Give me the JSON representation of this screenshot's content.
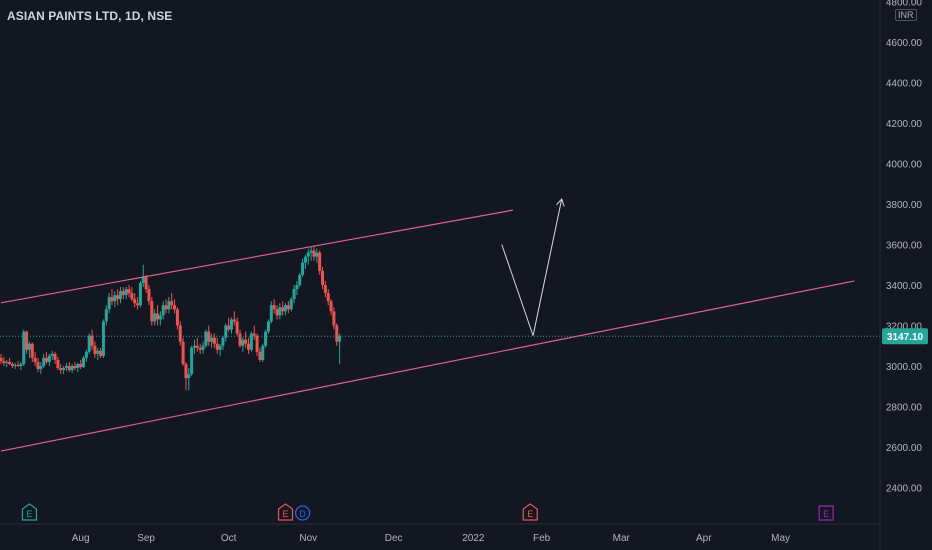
{
  "header": {
    "symbol_title": "ASIAN PAINTS LTD, 1D, NSE",
    "currency": "INR"
  },
  "colors": {
    "background": "#131722",
    "up": "#26a69a",
    "down": "#ef5350",
    "channel": "#e0608f",
    "arrow": "#d9d9e0",
    "axis_text": "#b2b5be",
    "price_badge": "#26a69a",
    "earnings_past_up": "#26a69a",
    "earnings_past_down": "#ef5350",
    "earnings_future": "#9c27b0",
    "dividend": "#2962ff"
  },
  "chart_data": {
    "type": "candlestick",
    "title": "ASIAN PAINTS LTD, 1D, NSE",
    "y_unit": "INR",
    "y_ticks": [
      2400,
      2600,
      2800,
      3000,
      3200,
      3400,
      3600,
      3800,
      4000,
      4200,
      4400,
      4600,
      4800
    ],
    "y_tick_labels": [
      "2400.00",
      "2600.00",
      "2800.00",
      "3000.00",
      "3200.00",
      "3400.00",
      "3600.00",
      "3800.00",
      "4000.00",
      "4200.00",
      "4400.00",
      "4600.00",
      "4800.00"
    ],
    "ylim": [
      2200,
      4800
    ],
    "x_labels": [
      "Aug",
      "Sep",
      "Oct",
      "Nov",
      "Dec",
      "2022",
      "Feb",
      "Mar",
      "Apr",
      "May"
    ],
    "x_label_positions": [
      28,
      51,
      80,
      108,
      138,
      166,
      190,
      218,
      247,
      274
    ],
    "xlim": [
      0,
      300
    ],
    "last_price": 3147.1,
    "last_price_label": "3147.10",
    "candles": [
      [
        3040,
        3060,
        3010,
        3025
      ],
      [
        3025,
        3045,
        3000,
        3015
      ],
      [
        3015,
        3030,
        2995,
        3020
      ],
      [
        3020,
        3040,
        3005,
        3010
      ],
      [
        3010,
        3020,
        2990,
        3000
      ],
      [
        3000,
        3015,
        2985,
        3005
      ],
      [
        3005,
        3025,
        2995,
        3000
      ],
      [
        3000,
        3020,
        2980,
        3010
      ],
      [
        3010,
        3180,
        3000,
        3170
      ],
      [
        3170,
        3175,
        3060,
        3080
      ],
      [
        3080,
        3120,
        3040,
        3110
      ],
      [
        3110,
        3115,
        3020,
        3040
      ],
      [
        3040,
        3070,
        3000,
        3020
      ],
      [
        3020,
        3040,
        2970,
        2985
      ],
      [
        2985,
        3020,
        2960,
        3000
      ],
      [
        3000,
        3060,
        2990,
        3040
      ],
      [
        3040,
        3070,
        3010,
        3020
      ],
      [
        3020,
        3060,
        3000,
        3050
      ],
      [
        3050,
        3075,
        3030,
        3060
      ],
      [
        3060,
        3070,
        3010,
        3030
      ],
      [
        3030,
        3045,
        2980,
        2990
      ],
      [
        2990,
        3010,
        2960,
        2980
      ],
      [
        2980,
        3000,
        2960,
        2990
      ],
      [
        2990,
        3015,
        2975,
        3000
      ],
      [
        3000,
        3020,
        2970,
        2980
      ],
      [
        2980,
        3010,
        2965,
        3000
      ],
      [
        3000,
        3020,
        2980,
        2990
      ],
      [
        2990,
        3015,
        2970,
        3010
      ],
      [
        3010,
        3030,
        2985,
        2995
      ],
      [
        2995,
        3050,
        2990,
        3040
      ],
      [
        3040,
        3080,
        3020,
        3070
      ],
      [
        3070,
        3160,
        3060,
        3150
      ],
      [
        3150,
        3180,
        3080,
        3100
      ],
      [
        3100,
        3120,
        3040,
        3060
      ],
      [
        3060,
        3090,
        3030,
        3075
      ],
      [
        3075,
        3090,
        3040,
        3050
      ],
      [
        3050,
        3230,
        3040,
        3220
      ],
      [
        3220,
        3300,
        3200,
        3280
      ],
      [
        3280,
        3360,
        3260,
        3340
      ],
      [
        3340,
        3380,
        3300,
        3320
      ],
      [
        3320,
        3370,
        3290,
        3350
      ],
      [
        3350,
        3380,
        3300,
        3330
      ],
      [
        3330,
        3390,
        3310,
        3370
      ],
      [
        3370,
        3390,
        3330,
        3350
      ],
      [
        3350,
        3390,
        3330,
        3380
      ],
      [
        3380,
        3400,
        3340,
        3360
      ],
      [
        3360,
        3390,
        3320,
        3330
      ],
      [
        3330,
        3360,
        3290,
        3310
      ],
      [
        3310,
        3340,
        3280,
        3300
      ],
      [
        3300,
        3420,
        3290,
        3410
      ],
      [
        3410,
        3500,
        3390,
        3440
      ],
      [
        3440,
        3450,
        3360,
        3380
      ],
      [
        3380,
        3400,
        3300,
        3320
      ],
      [
        3320,
        3340,
        3200,
        3220
      ],
      [
        3220,
        3280,
        3200,
        3260
      ],
      [
        3260,
        3300,
        3200,
        3230
      ],
      [
        3230,
        3270,
        3200,
        3250
      ],
      [
        3250,
        3320,
        3230,
        3300
      ],
      [
        3300,
        3330,
        3260,
        3280
      ],
      [
        3280,
        3340,
        3260,
        3320
      ],
      [
        3320,
        3360,
        3280,
        3300
      ],
      [
        3300,
        3330,
        3260,
        3280
      ],
      [
        3280,
        3290,
        3180,
        3200
      ],
      [
        3200,
        3220,
        3100,
        3120
      ],
      [
        3120,
        3140,
        3000,
        3010
      ],
      [
        3010,
        3020,
        2880,
        2940
      ],
      [
        2940,
        2990,
        2880,
        2960
      ],
      [
        2960,
        3100,
        2950,
        3090
      ],
      [
        3090,
        3130,
        3060,
        3100
      ],
      [
        3100,
        3140,
        3070,
        3090
      ],
      [
        3090,
        3110,
        3060,
        3080
      ],
      [
        3080,
        3120,
        3060,
        3100
      ],
      [
        3100,
        3180,
        3090,
        3170
      ],
      [
        3170,
        3200,
        3100,
        3120
      ],
      [
        3120,
        3160,
        3090,
        3140
      ],
      [
        3140,
        3160,
        3090,
        3110
      ],
      [
        3110,
        3140,
        3060,
        3080
      ],
      [
        3080,
        3110,
        3050,
        3100
      ],
      [
        3100,
        3150,
        3080,
        3140
      ],
      [
        3140,
        3210,
        3120,
        3200
      ],
      [
        3200,
        3240,
        3170,
        3180
      ],
      [
        3180,
        3240,
        3160,
        3230
      ],
      [
        3230,
        3270,
        3200,
        3220
      ],
      [
        3220,
        3240,
        3150,
        3160
      ],
      [
        3160,
        3180,
        3090,
        3100
      ],
      [
        3100,
        3140,
        3070,
        3130
      ],
      [
        3130,
        3170,
        3090,
        3110
      ],
      [
        3110,
        3140,
        3060,
        3080
      ],
      [
        3080,
        3170,
        3070,
        3160
      ],
      [
        3160,
        3200,
        3130,
        3150
      ],
      [
        3150,
        3160,
        3050,
        3070
      ],
      [
        3070,
        3090,
        3020,
        3030
      ],
      [
        3030,
        3110,
        3020,
        3100
      ],
      [
        3100,
        3180,
        3090,
        3170
      ],
      [
        3170,
        3230,
        3160,
        3220
      ],
      [
        3220,
        3320,
        3210,
        3300
      ],
      [
        3300,
        3330,
        3260,
        3280
      ],
      [
        3280,
        3300,
        3230,
        3250
      ],
      [
        3250,
        3310,
        3230,
        3290
      ],
      [
        3290,
        3320,
        3250,
        3270
      ],
      [
        3270,
        3310,
        3250,
        3300
      ],
      [
        3300,
        3320,
        3260,
        3280
      ],
      [
        3280,
        3340,
        3270,
        3330
      ],
      [
        3330,
        3400,
        3310,
        3380
      ],
      [
        3380,
        3420,
        3350,
        3400
      ],
      [
        3400,
        3460,
        3390,
        3450
      ],
      [
        3450,
        3530,
        3440,
        3510
      ],
      [
        3510,
        3550,
        3480,
        3540
      ],
      [
        3540,
        3580,
        3500,
        3560
      ],
      [
        3560,
        3590,
        3520,
        3570
      ],
      [
        3570,
        3590,
        3520,
        3540
      ],
      [
        3540,
        3580,
        3510,
        3560
      ],
      [
        3560,
        3570,
        3450,
        3470
      ],
      [
        3470,
        3490,
        3380,
        3400
      ],
      [
        3400,
        3420,
        3340,
        3360
      ],
      [
        3360,
        3380,
        3300,
        3320
      ],
      [
        3320,
        3330,
        3250,
        3270
      ],
      [
        3270,
        3290,
        3180,
        3200
      ],
      [
        3200,
        3210,
        3100,
        3120
      ],
      [
        3120,
        3160,
        3010,
        3150
      ]
    ],
    "series": [
      {
        "type": "line",
        "role": "channel-upper",
        "points": [
          [
            0,
            3312
          ],
          [
            180,
            3770
          ]
        ]
      },
      {
        "type": "line",
        "role": "channel-lower",
        "points": [
          [
            0,
            2580
          ],
          [
            300,
            3420
          ]
        ]
      },
      {
        "type": "arrow",
        "role": "drawn-down",
        "points": [
          [
            176,
            3600
          ],
          [
            187,
            3150
          ]
        ]
      },
      {
        "type": "arrow",
        "role": "drawn-up",
        "points": [
          [
            187,
            3150
          ],
          [
            197,
            3820
          ]
        ]
      }
    ],
    "events": [
      {
        "x": 10,
        "kind": "earnings",
        "letter": "E",
        "color": "#26a69a",
        "status": "past"
      },
      {
        "x": 100,
        "kind": "earnings",
        "letter": "E",
        "color": "#ef5350",
        "status": "past"
      },
      {
        "x": 106,
        "kind": "dividend",
        "letter": "D",
        "color": "#2962ff",
        "status": "past"
      },
      {
        "x": 186,
        "kind": "earnings",
        "letter": "E",
        "color": "#ef5350",
        "status": "past"
      },
      {
        "x": 290,
        "kind": "earnings",
        "letter": "E",
        "color": "#9c27b0",
        "status": "future"
      }
    ]
  }
}
